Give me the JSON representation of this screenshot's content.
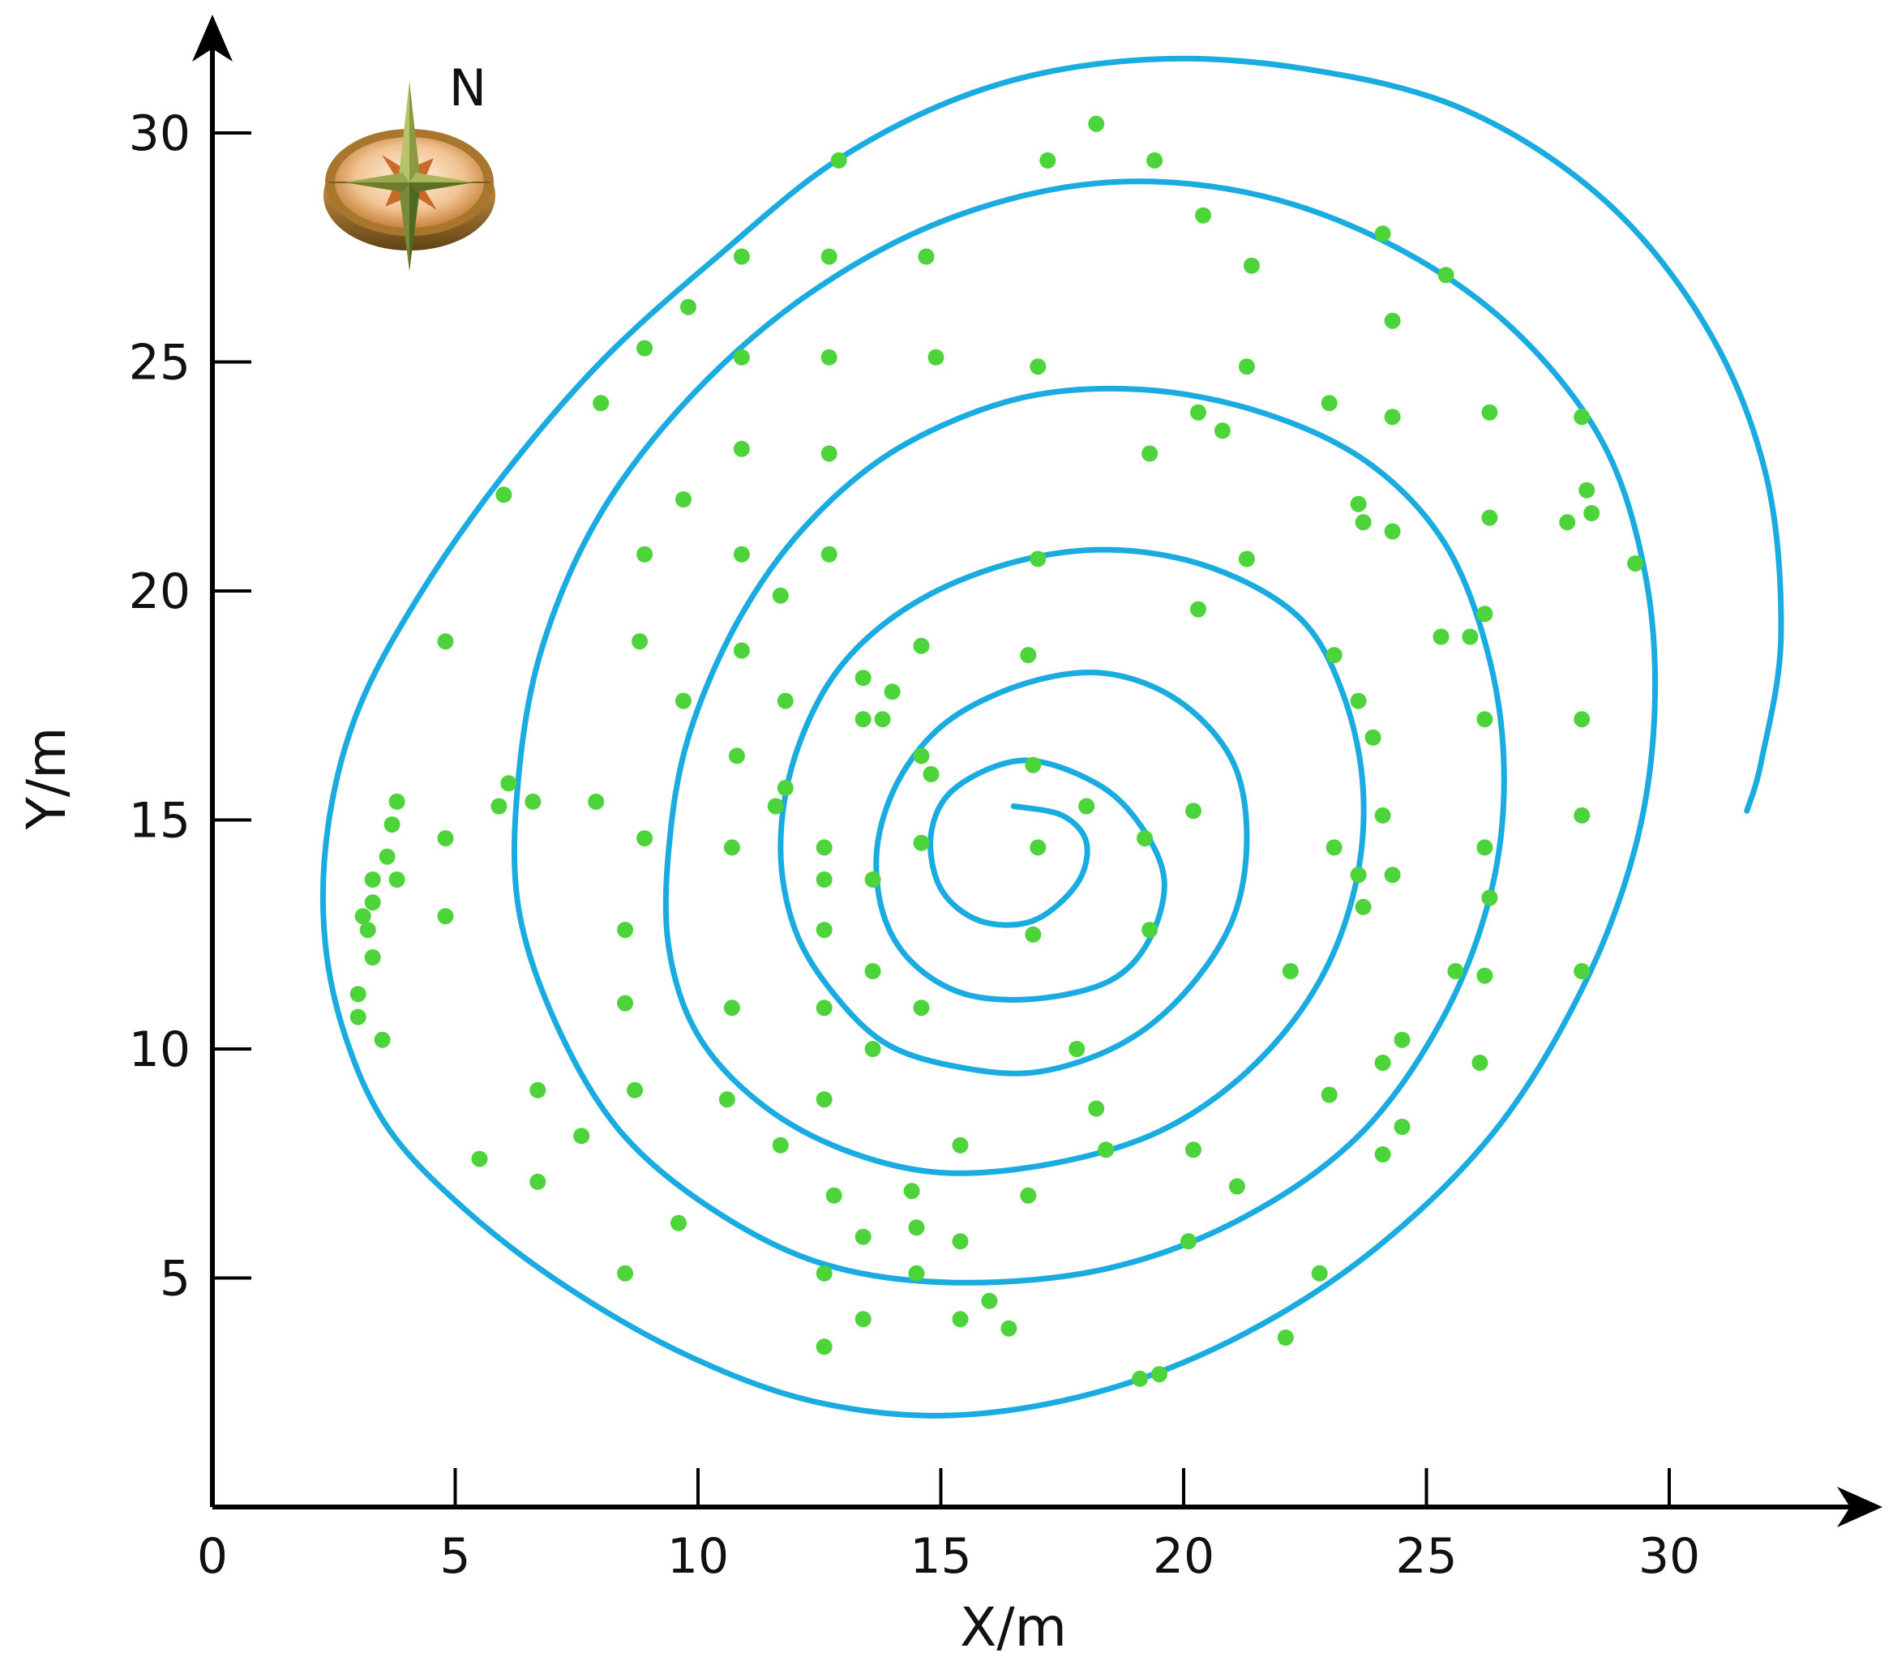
{
  "chart_data": {
    "type": "scatter",
    "title": "",
    "xlabel": "X/m",
    "ylabel": "Y/m",
    "x_ticks": [
      0,
      5,
      10,
      15,
      20,
      25,
      30
    ],
    "y_ticks": [
      5,
      10,
      15,
      20,
      25,
      30
    ],
    "xlim": [
      0,
      33.5
    ],
    "ylim": [
      0,
      33.5
    ],
    "grid": false,
    "compass_label": "N",
    "colors": {
      "points": "#4cd43a",
      "path": "#1aabe0",
      "axis": "#000000"
    },
    "series": [
      {
        "type": "scatter",
        "points": [
          [
            18.2,
            30.2
          ],
          [
            17.2,
            29.4
          ],
          [
            19.4,
            29.4
          ],
          [
            12.9,
            29.4
          ],
          [
            20.4,
            28.2
          ],
          [
            24.1,
            27.8
          ],
          [
            25.4,
            26.9
          ],
          [
            21.4,
            27.1
          ],
          [
            10.9,
            27.3
          ],
          [
            12.7,
            27.3
          ],
          [
            14.7,
            27.3
          ],
          [
            9.8,
            26.2
          ],
          [
            24.3,
            25.9
          ],
          [
            8.9,
            25.3
          ],
          [
            10.9,
            25.1
          ],
          [
            12.7,
            25.1
          ],
          [
            14.9,
            25.1
          ],
          [
            17.0,
            24.9
          ],
          [
            21.3,
            24.9
          ],
          [
            8.0,
            24.1
          ],
          [
            23.0,
            24.1
          ],
          [
            20.3,
            23.9
          ],
          [
            20.8,
            23.5
          ],
          [
            24.3,
            23.8
          ],
          [
            26.3,
            23.9
          ],
          [
            28.2,
            23.8
          ],
          [
            10.9,
            23.1
          ],
          [
            12.7,
            23.0
          ],
          [
            19.3,
            23.0
          ],
          [
            6.0,
            22.1
          ],
          [
            9.7,
            22.0
          ],
          [
            23.6,
            21.9
          ],
          [
            23.7,
            21.5
          ],
          [
            26.3,
            21.6
          ],
          [
            27.9,
            21.5
          ],
          [
            28.3,
            22.2
          ],
          [
            28.4,
            21.7
          ],
          [
            24.3,
            21.3
          ],
          [
            8.9,
            20.8
          ],
          [
            10.9,
            20.8
          ],
          [
            12.7,
            20.8
          ],
          [
            17.0,
            20.7
          ],
          [
            21.3,
            20.7
          ],
          [
            29.3,
            20.6
          ],
          [
            11.7,
            19.9
          ],
          [
            20.3,
            19.6
          ],
          [
            26.2,
            19.5
          ],
          [
            4.8,
            18.9
          ],
          [
            8.8,
            18.9
          ],
          [
            10.9,
            18.7
          ],
          [
            14.6,
            18.8
          ],
          [
            16.8,
            18.6
          ],
          [
            23.1,
            18.6
          ],
          [
            25.3,
            19.0
          ],
          [
            25.9,
            19.0
          ],
          [
            13.4,
            18.1
          ],
          [
            14.0,
            17.8
          ],
          [
            9.7,
            17.6
          ],
          [
            11.8,
            17.6
          ],
          [
            23.6,
            17.6
          ],
          [
            13.4,
            17.2
          ],
          [
            13.8,
            17.2
          ],
          [
            26.2,
            17.2
          ],
          [
            28.2,
            17.2
          ],
          [
            23.9,
            16.8
          ],
          [
            10.8,
            16.4
          ],
          [
            14.6,
            16.4
          ],
          [
            14.8,
            16.0
          ],
          [
            16.9,
            16.2
          ],
          [
            6.1,
            15.8
          ],
          [
            11.8,
            15.7
          ],
          [
            3.8,
            15.4
          ],
          [
            5.9,
            15.3
          ],
          [
            6.6,
            15.4
          ],
          [
            7.9,
            15.4
          ],
          [
            11.6,
            15.3
          ],
          [
            18.0,
            15.3
          ],
          [
            20.2,
            15.2
          ],
          [
            24.1,
            15.1
          ],
          [
            28.2,
            15.1
          ],
          [
            3.7,
            14.9
          ],
          [
            4.8,
            14.6
          ],
          [
            8.9,
            14.6
          ],
          [
            19.2,
            14.6
          ],
          [
            10.7,
            14.4
          ],
          [
            12.6,
            14.4
          ],
          [
            14.6,
            14.5
          ],
          [
            17.0,
            14.4
          ],
          [
            23.1,
            14.4
          ],
          [
            26.2,
            14.4
          ],
          [
            3.6,
            14.2
          ],
          [
            3.3,
            13.7
          ],
          [
            3.8,
            13.7
          ],
          [
            12.6,
            13.7
          ],
          [
            13.6,
            13.7
          ],
          [
            23.6,
            13.8
          ],
          [
            24.3,
            13.8
          ],
          [
            26.3,
            13.3
          ],
          [
            3.3,
            13.2
          ],
          [
            23.7,
            13.1
          ],
          [
            3.1,
            12.9
          ],
          [
            4.8,
            12.9
          ],
          [
            3.2,
            12.6
          ],
          [
            8.5,
            12.6
          ],
          [
            12.6,
            12.6
          ],
          [
            16.9,
            12.5
          ],
          [
            19.3,
            12.6
          ],
          [
            3.3,
            12.0
          ],
          [
            13.6,
            11.7
          ],
          [
            22.2,
            11.7
          ],
          [
            25.6,
            11.7
          ],
          [
            26.2,
            11.6
          ],
          [
            28.2,
            11.7
          ],
          [
            3.0,
            11.2
          ],
          [
            8.5,
            11.0
          ],
          [
            3.0,
            10.7
          ],
          [
            10.7,
            10.9
          ],
          [
            12.6,
            10.9
          ],
          [
            14.6,
            10.9
          ],
          [
            3.5,
            10.2
          ],
          [
            13.6,
            10.0
          ],
          [
            17.8,
            10.0
          ],
          [
            24.5,
            10.2
          ],
          [
            24.1,
            9.7
          ],
          [
            26.1,
            9.7
          ],
          [
            6.7,
            9.1
          ],
          [
            8.7,
            9.1
          ],
          [
            10.6,
            8.9
          ],
          [
            12.6,
            8.9
          ],
          [
            23.0,
            9.0
          ],
          [
            18.2,
            8.7
          ],
          [
            24.5,
            8.3
          ],
          [
            7.6,
            8.1
          ],
          [
            11.7,
            7.9
          ],
          [
            15.4,
            7.9
          ],
          [
            18.4,
            7.8
          ],
          [
            20.2,
            7.8
          ],
          [
            24.1,
            7.7
          ],
          [
            5.5,
            7.6
          ],
          [
            6.7,
            7.1
          ],
          [
            21.1,
            7.0
          ],
          [
            12.8,
            6.8
          ],
          [
            14.4,
            6.9
          ],
          [
            16.8,
            6.8
          ],
          [
            9.6,
            6.2
          ],
          [
            13.4,
            5.9
          ],
          [
            14.5,
            6.1
          ],
          [
            15.4,
            5.8
          ],
          [
            20.1,
            5.8
          ],
          [
            8.5,
            5.1
          ],
          [
            12.6,
            5.1
          ],
          [
            14.5,
            5.1
          ],
          [
            22.8,
            5.1
          ],
          [
            16.0,
            4.5
          ],
          [
            13.4,
            4.1
          ],
          [
            15.4,
            4.1
          ],
          [
            16.4,
            3.9
          ],
          [
            22.1,
            3.7
          ],
          [
            12.6,
            3.5
          ],
          [
            19.1,
            2.8
          ],
          [
            19.5,
            2.9
          ]
        ]
      },
      {
        "type": "line",
        "spiral_path": [
          [
            16.5,
            15.3
          ],
          [
            17.5,
            15.1
          ],
          [
            18.0,
            14.5
          ],
          [
            17.8,
            13.6
          ],
          [
            16.9,
            12.8
          ],
          [
            15.8,
            12.8
          ],
          [
            15.0,
            13.5
          ],
          [
            14.8,
            14.7
          ],
          [
            15.3,
            15.7
          ],
          [
            16.7,
            16.3
          ],
          [
            18.2,
            15.8
          ],
          [
            19.1,
            14.9
          ],
          [
            19.6,
            13.7
          ],
          [
            19.3,
            12.4
          ],
          [
            18.5,
            11.5
          ],
          [
            17.0,
            11.1
          ],
          [
            15.5,
            11.2
          ],
          [
            14.4,
            11.9
          ],
          [
            13.8,
            13.0
          ],
          [
            13.7,
            14.5
          ],
          [
            14.2,
            16.0
          ],
          [
            15.2,
            17.2
          ],
          [
            16.8,
            18.0
          ],
          [
            18.4,
            18.2
          ],
          [
            19.9,
            17.6
          ],
          [
            21.0,
            16.3
          ],
          [
            21.3,
            14.6
          ],
          [
            21.0,
            12.8
          ],
          [
            20.0,
            11.2
          ],
          [
            18.7,
            10.1
          ],
          [
            17.0,
            9.5
          ],
          [
            15.4,
            9.6
          ],
          [
            13.9,
            10.1
          ],
          [
            12.8,
            11.2
          ],
          [
            12.0,
            12.6
          ],
          [
            11.7,
            14.4
          ],
          [
            12.0,
            16.4
          ],
          [
            12.9,
            18.3
          ],
          [
            14.4,
            19.7
          ],
          [
            16.4,
            20.6
          ],
          [
            18.5,
            20.9
          ],
          [
            20.6,
            20.5
          ],
          [
            22.4,
            19.4
          ],
          [
            23.3,
            17.7
          ],
          [
            23.7,
            15.6
          ],
          [
            23.5,
            13.4
          ],
          [
            22.7,
            11.3
          ],
          [
            21.3,
            9.5
          ],
          [
            19.5,
            8.2
          ],
          [
            17.3,
            7.5
          ],
          [
            15.0,
            7.3
          ],
          [
            13.0,
            7.8
          ],
          [
            11.3,
            8.8
          ],
          [
            10.0,
            10.3
          ],
          [
            9.4,
            12.2
          ],
          [
            9.4,
            14.4
          ],
          [
            9.8,
            16.8
          ],
          [
            10.8,
            19.3
          ],
          [
            12.2,
            21.4
          ],
          [
            14.1,
            23.1
          ],
          [
            16.6,
            24.2
          ],
          [
            19.1,
            24.4
          ],
          [
            21.6,
            23.9
          ],
          [
            23.8,
            22.8
          ],
          [
            25.4,
            21.0
          ],
          [
            26.3,
            18.5
          ],
          [
            26.6,
            15.9
          ],
          [
            26.3,
            13.3
          ],
          [
            25.3,
            10.6
          ],
          [
            23.6,
            8.1
          ],
          [
            21.2,
            6.3
          ],
          [
            18.4,
            5.2
          ],
          [
            15.3,
            4.9
          ],
          [
            12.6,
            5.3
          ],
          [
            10.3,
            6.5
          ],
          [
            8.4,
            8.2
          ],
          [
            7.1,
            10.5
          ],
          [
            6.3,
            13.1
          ],
          [
            6.3,
            15.9
          ],
          [
            6.8,
            18.8
          ],
          [
            8.0,
            21.7
          ],
          [
            9.9,
            24.3
          ],
          [
            12.3,
            26.5
          ],
          [
            15.1,
            28.1
          ],
          [
            18.2,
            28.9
          ],
          [
            21.3,
            28.7
          ],
          [
            24.2,
            27.6
          ],
          [
            26.7,
            25.8
          ],
          [
            28.6,
            23.3
          ],
          [
            29.5,
            20.4
          ],
          [
            29.7,
            17.4
          ],
          [
            29.3,
            14.4
          ],
          [
            28.2,
            11.3
          ],
          [
            26.4,
            8.2
          ],
          [
            23.9,
            5.6
          ],
          [
            21.1,
            3.7
          ],
          [
            18.2,
            2.5
          ],
          [
            15.2,
            2.0
          ],
          [
            12.4,
            2.3
          ],
          [
            9.8,
            3.3
          ],
          [
            7.3,
            4.8
          ],
          [
            5.2,
            6.5
          ],
          [
            3.6,
            8.3
          ],
          [
            2.7,
            10.4
          ],
          [
            2.3,
            12.6
          ],
          [
            2.4,
            15.0
          ],
          [
            3.0,
            17.4
          ],
          [
            4.2,
            19.8
          ],
          [
            5.9,
            22.4
          ],
          [
            8.0,
            25.0
          ],
          [
            10.4,
            27.3
          ],
          [
            13.0,
            29.5
          ],
          [
            16.0,
            31.0
          ],
          [
            19.2,
            31.6
          ],
          [
            22.5,
            31.4
          ],
          [
            25.8,
            30.5
          ],
          [
            28.7,
            28.5
          ],
          [
            30.8,
            25.7
          ],
          [
            32.0,
            22.5
          ],
          [
            32.3,
            19.0
          ],
          [
            31.9,
            16.3
          ],
          [
            31.6,
            15.2
          ]
        ]
      }
    ]
  }
}
